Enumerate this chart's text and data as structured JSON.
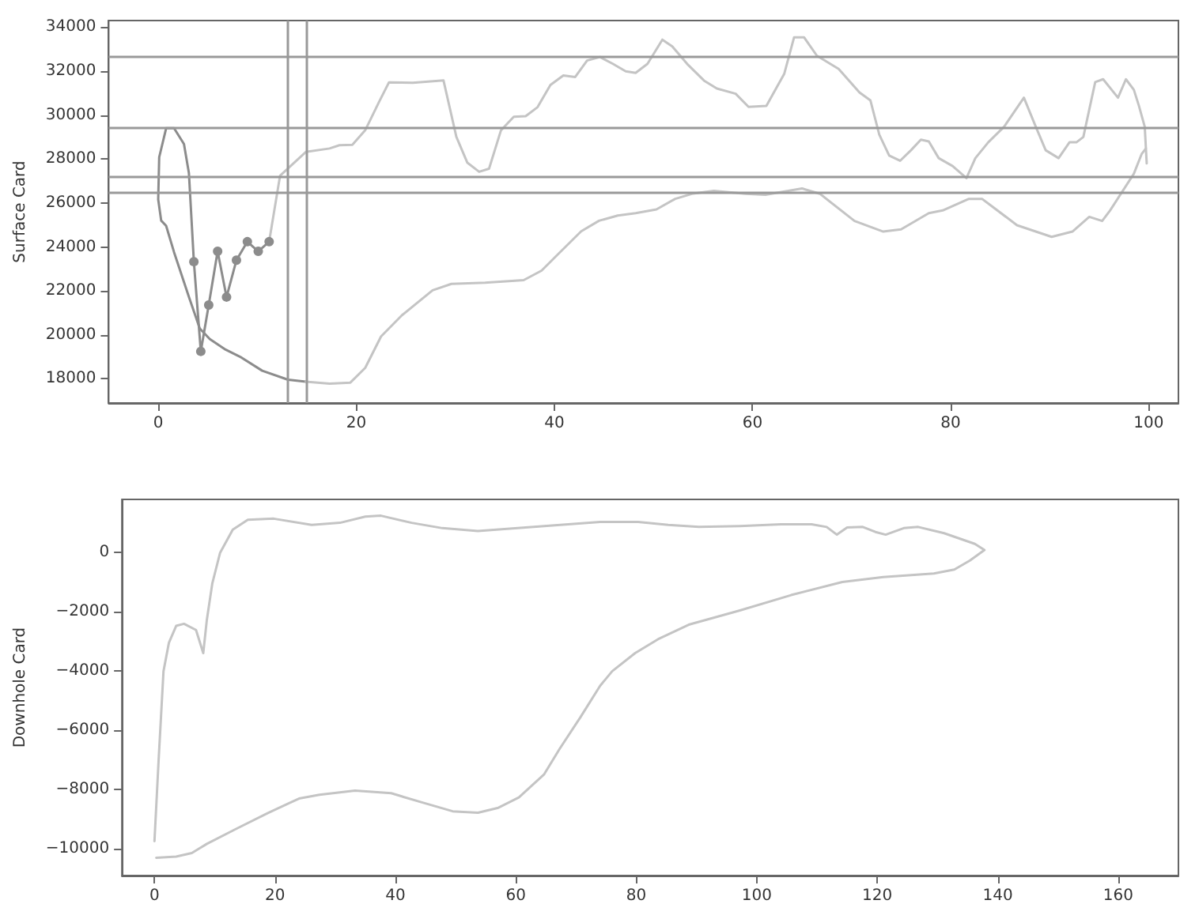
{
  "chart_data": [
    {
      "type": "line",
      "ylabel": "Surface Card",
      "xlim": [
        -5,
        103
      ],
      "ylim": [
        16900,
        34300
      ],
      "xticks": [
        0,
        20,
        40,
        60,
        80,
        100
      ],
      "yticks": [
        18000,
        20000,
        22000,
        24000,
        26000,
        28000,
        30000,
        32000,
        34000
      ],
      "ref_lines": [
        {
          "axis": "y",
          "value": 32700,
          "color": "#999999"
        },
        {
          "axis": "y",
          "value": 29400,
          "color": "#999999"
        },
        {
          "axis": "y",
          "value": 27200,
          "color": "#999999"
        },
        {
          "axis": "y",
          "value": 26500,
          "color": "#999999"
        },
        {
          "axis": "x",
          "value": 13,
          "color": "#999999"
        },
        {
          "axis": "x",
          "value": 15,
          "color": "#999999"
        }
      ],
      "series": [
        {
          "color": "#8c8c8c",
          "marker": "none",
          "x": [
            14.9,
            13.1,
            10.5,
            8.4,
            6.8,
            5.2,
            4.2,
            3.1,
            1.6,
            0.8,
            0.3,
            0,
            0.1,
            0.8,
            1.6,
            2.6,
            3.1,
            3.6
          ],
          "values": [
            17870,
            17960,
            18370,
            18970,
            19330,
            19810,
            20290,
            21730,
            23760,
            24960,
            25200,
            26160,
            28080,
            29400,
            29400,
            28680,
            27360,
            23330
          ]
        },
        {
          "color": "#8c8c8c",
          "marker": "circle",
          "x": [
            3.6,
            4.3,
            5.1,
            6,
            6.9,
            7.9,
            9,
            10.1,
            11.2
          ],
          "values": [
            23330,
            19250,
            21360,
            23800,
            21720,
            23400,
            24240,
            23800,
            24240
          ]
        },
        {
          "color": "#c4c4c4",
          "marker": "none",
          "x": [
            11.2,
            12.3,
            14.9,
            17.3,
            18.3,
            19.6,
            20.9,
            22.3,
            23.3,
            25.7,
            28.8,
            30.1,
            31.2,
            32.4,
            33.4,
            34.6,
            35.9,
            37.1,
            38.3,
            39.6,
            40.9,
            42.1,
            43.3,
            44.6,
            45.9,
            47.2,
            48.2,
            49.4,
            50.9,
            51.9,
            53.5,
            55.1,
            56.4,
            58.3,
            59.6,
            61.4,
            63.2,
            64.2,
            65.2,
            66.5,
            68.7,
            70.8,
            71.9,
            72.8,
            73.8,
            74.9,
            76,
            77,
            77.8,
            78.8,
            80.2,
            81.6,
            82.5,
            83.8,
            85.4,
            87.4,
            88.6,
            89.6,
            90.9,
            92,
            92.7,
            93.4,
            94.6,
            95.4,
            96.9,
            97.7,
            98.5,
            99,
            99.6,
            99.8
          ],
          "values": [
            24240,
            27240,
            28320,
            28480,
            28630,
            28650,
            29310,
            30600,
            31490,
            31470,
            31580,
            29010,
            27840,
            27420,
            27560,
            29300,
            29920,
            29950,
            30360,
            31370,
            31800,
            31730,
            32480,
            32640,
            32330,
            31990,
            31920,
            32330,
            33430,
            33120,
            32280,
            31570,
            31210,
            30970,
            30370,
            30420,
            31870,
            33540,
            33540,
            32700,
            32100,
            31030,
            30670,
            29110,
            28160,
            27920,
            28400,
            28880,
            28800,
            28040,
            27680,
            27130,
            28040,
            28760,
            29470,
            30790,
            29470,
            28400,
            28040,
            28760,
            28760,
            29000,
            31500,
            31630,
            30790,
            31630,
            31150,
            30440,
            29470,
            27800
          ]
        },
        {
          "color": "#c4c4c4",
          "marker": "none",
          "x": [
            14.9,
            17.3,
            19.4,
            20.9,
            22.5,
            24.6,
            27.7,
            29.6,
            33,
            36.9,
            38.7,
            40.3,
            42.7,
            44.5,
            46.4,
            48.2,
            50.3,
            52.2,
            54,
            56.1,
            59.3,
            61.3,
            65,
            66.8,
            70.3,
            73.2,
            75,
            77.8,
            79.2,
            81.8,
            83.2,
            86.7,
            90.2,
            92.3,
            94,
            95.3,
            96.1,
            98.5,
            99.3,
            99.7
          ],
          "values": [
            17870,
            17780,
            17830,
            18500,
            19930,
            20890,
            22030,
            22320,
            22370,
            22490,
            22920,
            23640,
            24710,
            25190,
            25430,
            25540,
            25710,
            26190,
            26430,
            26550,
            26420,
            26370,
            26660,
            26420,
            25180,
            24700,
            24800,
            25540,
            25660,
            26180,
            26180,
            24990,
            24460,
            24700,
            25370,
            25180,
            25660,
            27330,
            28240,
            28470
          ]
        }
      ]
    },
    {
      "type": "line",
      "ylabel": "Downhole Card",
      "xlim": [
        -5.4,
        170
      ],
      "ylim": [
        -10900,
        1800
      ],
      "xticks": [
        0,
        20,
        40,
        60,
        80,
        100,
        120,
        140,
        160
      ],
      "yticks": [
        -10000,
        -8000,
        -6000,
        -4000,
        -2000,
        0
      ],
      "series": [
        {
          "color": "#c4c4c4",
          "marker": "none",
          "x": [
            0.3,
            3.6,
            6.2,
            8.7,
            13.8,
            18.9,
            24,
            27.4,
            33.3,
            39.3,
            44.4,
            49.5,
            53.7,
            57.1,
            60.5,
            64.7,
            67.3,
            70.7,
            74,
            76,
            79.8,
            83.6,
            88.7,
            97.2,
            105.7,
            114.2,
            121,
            129.4,
            132.8,
            135.4,
            137.8,
            136.2,
            131.1,
            126.8,
            124.4,
            121.4,
            119.7,
            117.6,
            115,
            113.3,
            111.6,
            109.1,
            104,
            97.2,
            90.4,
            85.3,
            80.3,
            74,
            64.7,
            53.7,
            47.8,
            42.7,
            37.6,
            35,
            30.8,
            26.1,
            19.8,
            15.5,
            13,
            10.9,
            9.6,
            8.7,
            8.1,
            6.9,
            4.9,
            3.6,
            2.4,
            1.5,
            0.7,
            0
          ],
          "values": [
            -10300,
            -10260,
            -10140,
            -9830,
            -9300,
            -8780,
            -8300,
            -8170,
            -8030,
            -8120,
            -8430,
            -8730,
            -8780,
            -8610,
            -8260,
            -7480,
            -6610,
            -5560,
            -4490,
            -4000,
            -3390,
            -2920,
            -2430,
            -1950,
            -1430,
            -990,
            -820,
            -700,
            -570,
            -260,
            90,
            300,
            660,
            870,
            830,
            610,
            700,
            870,
            850,
            610,
            870,
            960,
            960,
            900,
            870,
            940,
            1040,
            1040,
            900,
            730,
            830,
            1010,
            1250,
            1220,
            1010,
            940,
            1150,
            1110,
            780,
            0,
            -1040,
            -2260,
            -3390,
            -2610,
            -2400,
            -2470,
            -3040,
            -4000,
            -6960,
            -9740
          ]
        }
      ]
    }
  ]
}
